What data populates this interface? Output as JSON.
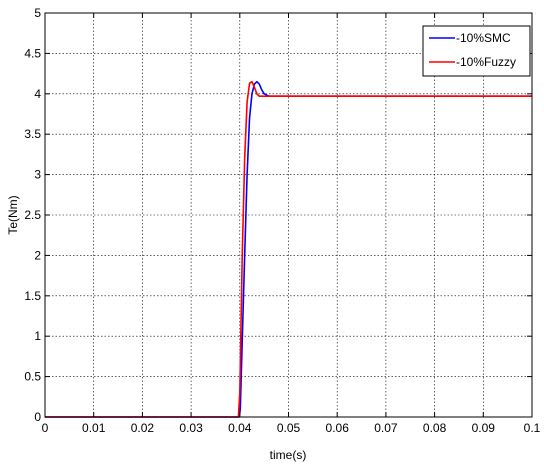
{
  "chart_data": {
    "type": "line",
    "title": "",
    "xlabel": "time(s)",
    "ylabel": "Te(Nm)",
    "xlim": [
      0,
      0.1
    ],
    "ylim": [
      0,
      5
    ],
    "xticks": [
      0,
      0.01,
      0.02,
      0.03,
      0.04,
      0.05,
      0.06,
      0.07,
      0.08,
      0.09,
      0.1
    ],
    "xtick_labels": [
      "0",
      "0.01",
      "0.02",
      "0.03",
      "0.04",
      "0.05",
      "0.06",
      "0.07",
      "0.08",
      "0.09",
      "0.1"
    ],
    "yticks": [
      0,
      0.5,
      1,
      1.5,
      2,
      2.5,
      3,
      3.5,
      4,
      4.5,
      5
    ],
    "ytick_labels": [
      "0",
      "0.5",
      "1",
      "1.5",
      "2",
      "2.5",
      "3",
      "3.5",
      "4",
      "4.5",
      "5"
    ],
    "grid": true,
    "legend_position": "top-right",
    "series": [
      {
        "name": "-10%SMC",
        "color": "#0000ff",
        "x": [
          0,
          0.0399,
          0.0401,
          0.041,
          0.0415,
          0.042,
          0.0425,
          0.043,
          0.0435,
          0.044,
          0.0445,
          0.045,
          0.046,
          0.1
        ],
        "y": [
          0,
          0,
          0.1,
          2.0,
          3.0,
          3.7,
          4.0,
          4.12,
          4.15,
          4.12,
          4.05,
          4.0,
          3.97,
          3.97
        ]
      },
      {
        "name": "-10%Fuzzy",
        "color": "#ff0000",
        "x": [
          0,
          0.0397,
          0.04,
          0.0405,
          0.041,
          0.0415,
          0.042,
          0.0425,
          0.043,
          0.0435,
          0.044,
          0.045,
          0.1
        ],
        "y": [
          0,
          0,
          0.3,
          2.0,
          3.2,
          3.9,
          4.13,
          4.15,
          4.08,
          4.0,
          3.97,
          3.97,
          3.97
        ]
      }
    ]
  }
}
